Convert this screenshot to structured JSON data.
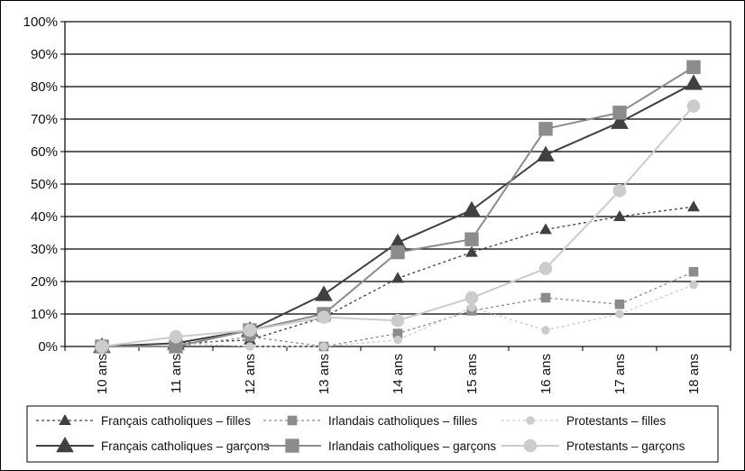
{
  "chart_data": {
    "type": "line",
    "categories": [
      "10 ans",
      "11 ans",
      "12 ans",
      "13 ans",
      "14 ans",
      "15 ans",
      "16 ans",
      "17 ans",
      "18 ans"
    ],
    "ylim": [
      0,
      100
    ],
    "yticks": [
      "0%",
      "10%",
      "20%",
      "30%",
      "40%",
      "50%",
      "60%",
      "70%",
      "80%",
      "90%",
      "100%"
    ],
    "grid": true,
    "legend_position": "bottom",
    "series": [
      {
        "name": "Français catholiques – filles",
        "values": [
          0,
          1,
          2,
          9,
          21,
          29,
          36,
          40,
          43
        ],
        "color": "#404040",
        "dash": "3,3",
        "marker": "triangle",
        "marker_size": 6
      },
      {
        "name": "Irlandais catholiques – filles",
        "values": [
          0,
          0,
          3,
          0,
          4,
          11,
          15,
          13,
          23
        ],
        "color": "#8c8c8c",
        "dash": "3,3",
        "marker": "square",
        "marker_size": 6
      },
      {
        "name": "Protestants – filles",
        "values": [
          0,
          1,
          0,
          0,
          2,
          12,
          5,
          10,
          19
        ],
        "color": "#cccccc",
        "dash": "3,3",
        "marker": "circle",
        "marker_size": 5
      },
      {
        "name": "Français catholiques – garçons",
        "values": [
          0,
          1,
          5,
          16,
          32,
          42,
          59,
          69,
          81
        ],
        "color": "#404040",
        "dash": "",
        "marker": "triangle",
        "marker_size": 9
      },
      {
        "name": "Irlandais catholiques – garçons",
        "values": [
          0,
          0,
          5,
          10,
          29,
          33,
          67,
          72,
          86
        ],
        "color": "#8c8c8c",
        "dash": "",
        "marker": "square",
        "marker_size": 9
      },
      {
        "name": "Protestants – garçons",
        "values": [
          0,
          3,
          5,
          9,
          8,
          15,
          24,
          48,
          74
        ],
        "color": "#cccccc",
        "dash": "",
        "marker": "circle",
        "marker_size": 8
      }
    ]
  }
}
